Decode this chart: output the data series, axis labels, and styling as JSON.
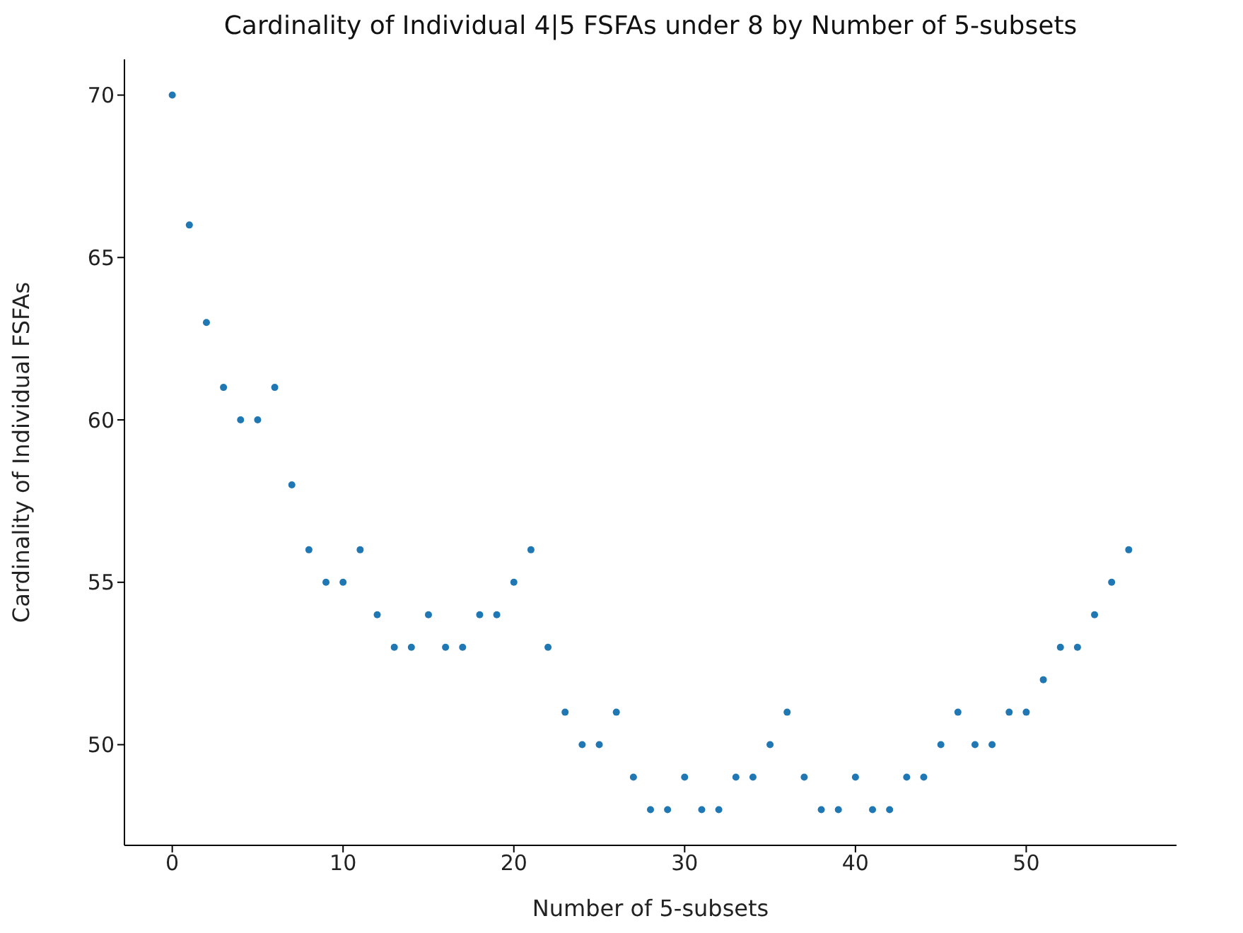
{
  "chart_data": {
    "type": "scatter",
    "title": "Cardinality of Individual 4|5 FSFAs under 8 by Number of 5-subsets",
    "xlabel": "Number of 5-subsets",
    "ylabel": "Cardinality of Individual FSFAs",
    "x": [
      0,
      1,
      2,
      3,
      4,
      5,
      6,
      7,
      8,
      9,
      10,
      11,
      12,
      13,
      14,
      15,
      16,
      17,
      18,
      19,
      20,
      21,
      22,
      23,
      24,
      25,
      26,
      27,
      28,
      29,
      30,
      31,
      32,
      33,
      34,
      35,
      36,
      37,
      38,
      39,
      40,
      41,
      42,
      43,
      44,
      45,
      46,
      47,
      48,
      49,
      50,
      51,
      52,
      53,
      54,
      55,
      56
    ],
    "values": [
      70,
      66,
      63,
      61,
      60,
      60,
      61,
      58,
      56,
      55,
      55,
      56,
      54,
      53,
      53,
      54,
      53,
      53,
      54,
      54,
      55,
      56,
      53,
      51,
      50,
      50,
      51,
      49,
      48,
      48,
      49,
      48,
      48,
      49,
      49,
      50,
      51,
      49,
      48,
      48,
      49,
      48,
      48,
      49,
      49,
      50,
      51,
      50,
      50,
      51,
      51,
      52,
      53,
      53,
      54,
      55,
      56
    ],
    "color": "#1f77b4",
    "marker": "circle",
    "xlim": [
      -2.8,
      58.8
    ],
    "ylim": [
      46.9,
      71.1
    ],
    "xticks": [
      0,
      10,
      20,
      30,
      40,
      50
    ],
    "yticks": [
      50,
      55,
      60,
      65,
      70
    ]
  }
}
